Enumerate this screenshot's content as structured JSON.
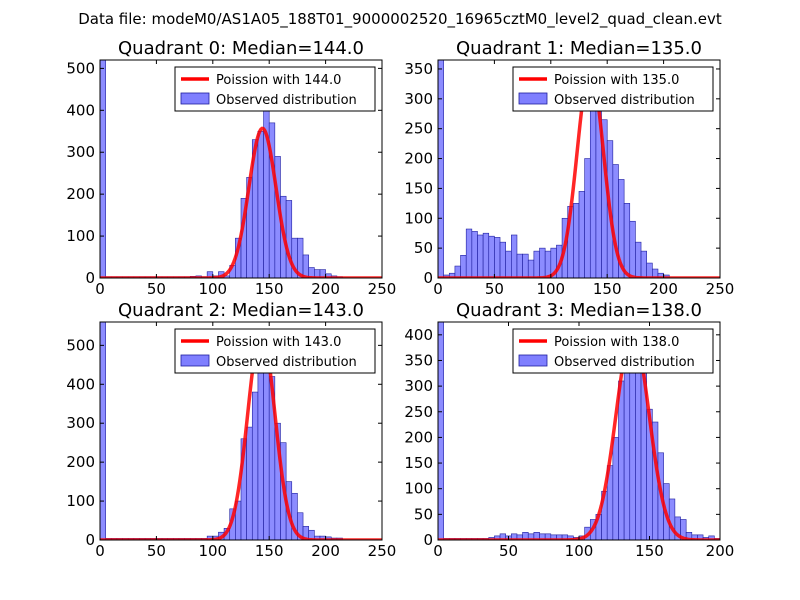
{
  "figure": {
    "suptitle": "Data file: modeM0/AS1A05_188T01_9000002520_16965cztM0_level2_quad_clean.evt"
  },
  "colors": {
    "poisson_line": "#ff0000",
    "bar_fill": "#7f7fff",
    "bar_edge": "#1f1f9f",
    "axes": "#000000",
    "background": "#ffffff"
  },
  "chart_data": [
    {
      "type": "bar",
      "title": "Quadrant 0: Median=144.0",
      "xlim": [
        0,
        250
      ],
      "ylim": [
        0,
        520
      ],
      "xticks": [
        0,
        50,
        100,
        150,
        200,
        250
      ],
      "yticks": [
        0,
        100,
        200,
        300,
        400,
        500
      ],
      "bin_width": 5,
      "legend": {
        "position": "top-right",
        "line_label": "Poission with 144.0",
        "bar_label": "Observed distribution"
      },
      "line": {
        "name": "Poission with 144.0",
        "mean": 144.0,
        "peak": 357,
        "sigma": 12.0
      },
      "bars": [
        {
          "x": 0,
          "height": 520
        },
        {
          "x": 5,
          "height": 3
        },
        {
          "x": 10,
          "height": 3
        },
        {
          "x": 15,
          "height": 3
        },
        {
          "x": 20,
          "height": 3
        },
        {
          "x": 25,
          "height": 3
        },
        {
          "x": 30,
          "height": 3
        },
        {
          "x": 35,
          "height": 3
        },
        {
          "x": 40,
          "height": 3
        },
        {
          "x": 45,
          "height": 3
        },
        {
          "x": 50,
          "height": 3
        },
        {
          "x": 55,
          "height": 3
        },
        {
          "x": 60,
          "height": 3
        },
        {
          "x": 65,
          "height": 3
        },
        {
          "x": 70,
          "height": 3
        },
        {
          "x": 75,
          "height": 3
        },
        {
          "x": 80,
          "height": 4
        },
        {
          "x": 85,
          "height": 5
        },
        {
          "x": 90,
          "height": 3
        },
        {
          "x": 95,
          "height": 15
        },
        {
          "x": 100,
          "height": 5
        },
        {
          "x": 105,
          "height": 15
        },
        {
          "x": 110,
          "height": 5
        },
        {
          "x": 115,
          "height": 30
        },
        {
          "x": 120,
          "height": 95
        },
        {
          "x": 125,
          "height": 190
        },
        {
          "x": 130,
          "height": 240
        },
        {
          "x": 135,
          "height": 330
        },
        {
          "x": 140,
          "height": 350
        },
        {
          "x": 145,
          "height": 400
        },
        {
          "x": 150,
          "height": 370
        },
        {
          "x": 155,
          "height": 290
        },
        {
          "x": 160,
          "height": 195
        },
        {
          "x": 165,
          "height": 185
        },
        {
          "x": 170,
          "height": 95
        },
        {
          "x": 175,
          "height": 95
        },
        {
          "x": 180,
          "height": 55
        },
        {
          "x": 185,
          "height": 25
        },
        {
          "x": 190,
          "height": 20
        },
        {
          "x": 195,
          "height": 20
        },
        {
          "x": 200,
          "height": 10
        },
        {
          "x": 205,
          "height": 5
        },
        {
          "x": 210,
          "height": 3
        }
      ]
    },
    {
      "type": "bar",
      "title": "Quadrant 1: Median=135.0",
      "xlim": [
        0,
        250
      ],
      "ylim": [
        0,
        365
      ],
      "xticks": [
        0,
        50,
        100,
        150,
        200,
        250
      ],
      "yticks": [
        0,
        50,
        100,
        150,
        200,
        250,
        300,
        350
      ],
      "bin_width": 5,
      "legend": {
        "position": "top-right",
        "line_label": "Poission with 135.0",
        "bar_label": "Observed distribution"
      },
      "line": {
        "name": "Poission with 135.0",
        "mean": 135.0,
        "peak": 350,
        "sigma": 11.6
      },
      "bars": [
        {
          "x": 0,
          "height": 365
        },
        {
          "x": 5,
          "height": 5
        },
        {
          "x": 10,
          "height": 8
        },
        {
          "x": 15,
          "height": 20
        },
        {
          "x": 20,
          "height": 38
        },
        {
          "x": 25,
          "height": 82
        },
        {
          "x": 30,
          "height": 78
        },
        {
          "x": 35,
          "height": 72
        },
        {
          "x": 40,
          "height": 75
        },
        {
          "x": 45,
          "height": 70
        },
        {
          "x": 50,
          "height": 68
        },
        {
          "x": 55,
          "height": 60
        },
        {
          "x": 60,
          "height": 45
        },
        {
          "x": 65,
          "height": 72
        },
        {
          "x": 70,
          "height": 40
        },
        {
          "x": 75,
          "height": 40
        },
        {
          "x": 80,
          "height": 30
        },
        {
          "x": 85,
          "height": 45
        },
        {
          "x": 90,
          "height": 50
        },
        {
          "x": 95,
          "height": 45
        },
        {
          "x": 100,
          "height": 50
        },
        {
          "x": 105,
          "height": 55
        },
        {
          "x": 110,
          "height": 100
        },
        {
          "x": 115,
          "height": 120
        },
        {
          "x": 120,
          "height": 125
        },
        {
          "x": 125,
          "height": 145
        },
        {
          "x": 130,
          "height": 200
        },
        {
          "x": 135,
          "height": 300
        },
        {
          "x": 140,
          "height": 290
        },
        {
          "x": 145,
          "height": 265
        },
        {
          "x": 150,
          "height": 230
        },
        {
          "x": 155,
          "height": 190
        },
        {
          "x": 160,
          "height": 165
        },
        {
          "x": 165,
          "height": 125
        },
        {
          "x": 170,
          "height": 95
        },
        {
          "x": 175,
          "height": 60
        },
        {
          "x": 180,
          "height": 45
        },
        {
          "x": 185,
          "height": 25
        },
        {
          "x": 190,
          "height": 15
        },
        {
          "x": 195,
          "height": 8
        },
        {
          "x": 200,
          "height": 5
        }
      ]
    },
    {
      "type": "bar",
      "title": "Quadrant 2: Median=143.0",
      "xlim": [
        0,
        250
      ],
      "ylim": [
        0,
        560
      ],
      "xticks": [
        0,
        50,
        100,
        150,
        200,
        250
      ],
      "yticks": [
        0,
        100,
        200,
        300,
        400,
        500
      ],
      "bin_width": 5,
      "legend": {
        "position": "top-right",
        "line_label": "Poission with 143.0",
        "bar_label": "Observed distribution"
      },
      "line": {
        "name": "Poission with 143.0",
        "mean": 143.0,
        "peak": 537,
        "sigma": 12.0
      },
      "bars": [
        {
          "x": 0,
          "height": 560
        },
        {
          "x": 5,
          "height": 4
        },
        {
          "x": 10,
          "height": 4
        },
        {
          "x": 15,
          "height": 4
        },
        {
          "x": 20,
          "height": 4
        },
        {
          "x": 25,
          "height": 4
        },
        {
          "x": 30,
          "height": 4
        },
        {
          "x": 35,
          "height": 4
        },
        {
          "x": 40,
          "height": 4
        },
        {
          "x": 45,
          "height": 4
        },
        {
          "x": 50,
          "height": 4
        },
        {
          "x": 55,
          "height": 4
        },
        {
          "x": 60,
          "height": 4
        },
        {
          "x": 65,
          "height": 4
        },
        {
          "x": 70,
          "height": 4
        },
        {
          "x": 75,
          "height": 4
        },
        {
          "x": 80,
          "height": 4
        },
        {
          "x": 85,
          "height": 4
        },
        {
          "x": 90,
          "height": 4
        },
        {
          "x": 95,
          "height": 10
        },
        {
          "x": 100,
          "height": 10
        },
        {
          "x": 105,
          "height": 20
        },
        {
          "x": 110,
          "height": 30
        },
        {
          "x": 115,
          "height": 80
        },
        {
          "x": 120,
          "height": 100
        },
        {
          "x": 125,
          "height": 260
        },
        {
          "x": 130,
          "height": 290
        },
        {
          "x": 135,
          "height": 380
        },
        {
          "x": 140,
          "height": 430
        },
        {
          "x": 145,
          "height": 480
        },
        {
          "x": 150,
          "height": 420
        },
        {
          "x": 155,
          "height": 300
        },
        {
          "x": 160,
          "height": 250
        },
        {
          "x": 165,
          "height": 150
        },
        {
          "x": 170,
          "height": 120
        },
        {
          "x": 175,
          "height": 70
        },
        {
          "x": 180,
          "height": 35
        },
        {
          "x": 185,
          "height": 25
        },
        {
          "x": 190,
          "height": 10
        },
        {
          "x": 195,
          "height": 10
        },
        {
          "x": 200,
          "height": 8
        },
        {
          "x": 205,
          "height": 5
        },
        {
          "x": 210,
          "height": 5
        }
      ]
    },
    {
      "type": "bar",
      "title": "Quadrant 3: Median=138.0",
      "xlim": [
        0,
        200
      ],
      "ylim": [
        0,
        425
      ],
      "xticks": [
        0,
        50,
        100,
        150,
        200
      ],
      "yticks": [
        0,
        50,
        100,
        150,
        200,
        250,
        300,
        350,
        400
      ],
      "bin_width": 4,
      "legend": {
        "position": "top-right",
        "line_label": "Poission with 138.0",
        "bar_label": "Observed distribution"
      },
      "line": {
        "name": "Poission with 138.0",
        "mean": 138.0,
        "peak": 405,
        "sigma": 11.7
      },
      "bars": [
        {
          "x": 0,
          "height": 425
        },
        {
          "x": 4,
          "height": 3
        },
        {
          "x": 8,
          "height": 3
        },
        {
          "x": 12,
          "height": 3
        },
        {
          "x": 16,
          "height": 3
        },
        {
          "x": 20,
          "height": 3
        },
        {
          "x": 24,
          "height": 3
        },
        {
          "x": 28,
          "height": 3
        },
        {
          "x": 32,
          "height": 3
        },
        {
          "x": 36,
          "height": 5
        },
        {
          "x": 40,
          "height": 8
        },
        {
          "x": 44,
          "height": 12
        },
        {
          "x": 48,
          "height": 8
        },
        {
          "x": 52,
          "height": 12
        },
        {
          "x": 56,
          "height": 10
        },
        {
          "x": 60,
          "height": 15
        },
        {
          "x": 64,
          "height": 12
        },
        {
          "x": 68,
          "height": 15
        },
        {
          "x": 72,
          "height": 12
        },
        {
          "x": 76,
          "height": 12
        },
        {
          "x": 80,
          "height": 10
        },
        {
          "x": 84,
          "height": 10
        },
        {
          "x": 88,
          "height": 10
        },
        {
          "x": 92,
          "height": 8
        },
        {
          "x": 96,
          "height": 5
        },
        {
          "x": 100,
          "height": 8
        },
        {
          "x": 104,
          "height": 25
        },
        {
          "x": 108,
          "height": 40
        },
        {
          "x": 112,
          "height": 50
        },
        {
          "x": 116,
          "height": 95
        },
        {
          "x": 120,
          "height": 145
        },
        {
          "x": 124,
          "height": 200
        },
        {
          "x": 128,
          "height": 310
        },
        {
          "x": 132,
          "height": 340
        },
        {
          "x": 136,
          "height": 395
        },
        {
          "x": 140,
          "height": 400
        },
        {
          "x": 144,
          "height": 360
        },
        {
          "x": 148,
          "height": 255
        },
        {
          "x": 152,
          "height": 230
        },
        {
          "x": 156,
          "height": 170
        },
        {
          "x": 160,
          "height": 110
        },
        {
          "x": 164,
          "height": 80
        },
        {
          "x": 168,
          "height": 45
        },
        {
          "x": 172,
          "height": 40
        },
        {
          "x": 176,
          "height": 15
        },
        {
          "x": 180,
          "height": 10
        },
        {
          "x": 184,
          "height": 10
        },
        {
          "x": 188,
          "height": 5
        },
        {
          "x": 192,
          "height": 8
        },
        {
          "x": 196,
          "height": 3
        }
      ]
    }
  ]
}
